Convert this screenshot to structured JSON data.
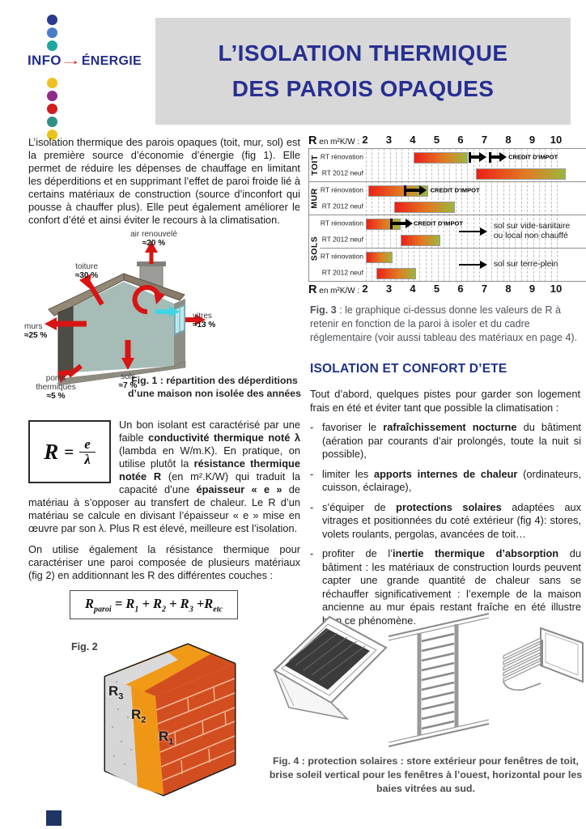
{
  "logo": {
    "word1": "INFO",
    "arrow": "→",
    "word2": "ÉNERGIE",
    "dot_colors_top": [
      "#2a3a8c",
      "#4a7cc7",
      "#20a7a3"
    ],
    "dot_colors_bottom": [
      "#f0c020",
      "#8e2a88",
      "#cf1d1d",
      "#2f8f89",
      "#e7c31c"
    ]
  },
  "title": {
    "line1": "L’ISOLATION THERMIQUE",
    "line2": "DES PAROIS OPAQUES"
  },
  "intro": "L’isolation thermique des parois opaques (toit, mur, sol) est la première source d’économie d’énergie (fig 1). Elle permet de réduire les  dépenses de chauffage en limitant les déperditions et en supprimant l’effet de paroi froide lié à certains matériaux de construction (source d’inconfort qui pousse à chauffer plus). Elle peut également améliorer le confort d’été et ainsi éviter le recours à la climatisation.",
  "fig1": {
    "labels": [
      {
        "name": "air renouvelé",
        "value": "≈20 %"
      },
      {
        "name": "toiture",
        "value": "≈30 %"
      },
      {
        "name": "vitres",
        "value": "≈13 %"
      },
      {
        "name": "murs",
        "value": "≈25 %"
      },
      {
        "name": "sols",
        "value": "≈7 %"
      },
      {
        "name": "ponts\nthermiques",
        "value": "≈5 %"
      }
    ],
    "caption": "Fig. 1 : répartition des déperditions\nd’une maison non isolée des années"
  },
  "isolant": {
    "formula": {
      "lhs": "R",
      "eq": "=",
      "num": "e",
      "den": "λ"
    },
    "p1": [
      {
        "t": "Un bon isolant est caractérisé par une faible "
      },
      {
        "t": "conductivité thermique noté λ",
        "b": true
      },
      {
        "t": " (lambda en W/m.K). En pratique, on utilise plutôt la "
      },
      {
        "t": "résistance thermique notée R",
        "b": true
      },
      {
        "t": " (en m².K/W) qui traduit la capacité d’une "
      },
      {
        "t": "épaisseur « e »",
        "b": true
      },
      {
        "t": " de matériau à s’opposer au transfert de chaleur. Le R d’un matériau se calcule en divisant l’épaisseur « e » mise en œuvre par son λ. Plus R est élevé, meilleure est l’isolation."
      }
    ],
    "p2": "On utilise également la résistance thermique pour caractériser une paroi composée de plusieurs matériaux (fig 2) en additionnant les R des différentes couches :",
    "formula2": [
      {
        "t": "R"
      },
      {
        "t": "paroi",
        "sub": true
      },
      {
        "t": " = R"
      },
      {
        "t": "1",
        "sub": true
      },
      {
        "t": " + R"
      },
      {
        "t": "2",
        "sub": true
      },
      {
        "t": " + R"
      },
      {
        "t": "3",
        "sub": true
      },
      {
        "t": " +R"
      },
      {
        "t": "etc",
        "sub": true
      }
    ]
  },
  "fig2": {
    "label": "Fig. 2",
    "layer_labels": [
      [
        {
          "t": "R"
        },
        {
          "t": "3",
          "sub": true
        }
      ],
      [
        {
          "t": "R"
        },
        {
          "t": "2",
          "sub": true
        }
      ],
      [
        {
          "t": "R"
        },
        {
          "t": "1",
          "sub": true
        }
      ]
    ]
  },
  "chart_data": {
    "type": "bar",
    "axis_label_big": "R",
    "axis_label_rest": " en m²K/W :",
    "axis_ticks": [
      2,
      3,
      4,
      5,
      6,
      7,
      8,
      9,
      10
    ],
    "axis_range": [
      2,
      10
    ],
    "gridline_step": 0.25,
    "bar_gradient": [
      "#ec2018",
      "#e27a22",
      "#9db63e"
    ],
    "sections": [
      {
        "name": "TOIT",
        "rows": [
          {
            "label": "RT rénovation",
            "bar": [
              4.0,
              6.2
            ],
            "arrows": [
              [
                6.3,
                7.05
              ],
              [
                7.15,
                7.9
              ]
            ],
            "note": "CREDIT D'IMPOT",
            "note_at": 7.97
          },
          {
            "label": "RT 2012 neuf",
            "bar": [
              6.6,
              10.3
            ]
          }
        ]
      },
      {
        "name": "MUR",
        "rows": [
          {
            "label": "RT rénovation",
            "bar": [
              2.1,
              4.55
            ],
            "arrows": [
              [
                3.6,
                4.55
              ]
            ],
            "note": "CREDIT D'IMPOT",
            "note_at": 4.7
          },
          {
            "label": "RT 2012 neuf",
            "bar": [
              3.2,
              5.65
            ]
          }
        ]
      },
      {
        "name": "SOLS",
        "rows": [
          {
            "label": "RT rénovation",
            "bar": [
              2.0,
              3.4
            ],
            "arrows": [
              [
                3.0,
                3.95
              ]
            ],
            "note": "CREDIT D'IMPOT",
            "note_at": 4.0
          },
          {
            "label": "RT 2012 neuf",
            "bar": [
              3.45,
              5.05
            ]
          },
          {
            "label": "RT rénovation",
            "bar": [
              2.0,
              3.05
            ],
            "divider_before": true
          },
          {
            "label": "RT 2012 neuf",
            "bar": [
              2.45,
              4.05
            ]
          }
        ],
        "annotations": [
          {
            "arrow": [
              5.9,
              7.1
            ],
            "text_at": 7.35,
            "text": "sol sur vide-sanitaire\nou local non chauffé",
            "row_span": [
              0,
              1
            ]
          },
          {
            "arrow": [
              5.9,
              7.1
            ],
            "text_at": 7.35,
            "text": "sol sur terre-plein",
            "row_span": [
              2,
              3
            ]
          }
        ]
      }
    ]
  },
  "fig3_caption": [
    {
      "t": "Fig. 3",
      "b": true
    },
    {
      "t": " : le graphique ci-dessus  donne les valeurs de R à retenir en fonction de la paroi à isoler et du cadre réglementaire (voir aussi tableau des matériaux en page 4)."
    }
  ],
  "confort": {
    "heading": "ISOLATION ET CONFORT D’ETE",
    "intro": "Tout d’abord, quelques pistes pour garder son logement frais en été et éviter tant que possible la climatisation :",
    "bullet_marker": "-",
    "bullets": [
      [
        {
          "t": "favoriser le "
        },
        {
          "t": "rafraîchissement nocturne",
          "b": true
        },
        {
          "t": " du bâtiment (aération par courants d’air prolongés, toute la nuit si possible),"
        }
      ],
      [
        {
          "t": "limiter les "
        },
        {
          "t": "apports internes de chaleur",
          "b": true
        },
        {
          "t": " (ordinateurs, cuisson, éclairage),"
        }
      ],
      [
        {
          "t": "s’équiper de "
        },
        {
          "t": "protections solaires",
          "b": true
        },
        {
          "t": " adaptées aux vitrages et positionnées du coté extérieur (fig 4): stores, volets roulants, pergolas, avancées de toit…"
        }
      ],
      [
        {
          "t": "profiter de l’"
        },
        {
          "t": "inertie thermique d’absorption",
          "b": true
        },
        {
          "t": " du bâtiment : les matériaux de construction lourds peuvent capter une grande quantité de chaleur sans se réchauffer significativement : l’exemple de la maison ancienne au mur épais restant fraîche en été illustre bien ce phénomène."
        }
      ]
    ]
  },
  "fig4": {
    "caption": "Fig. 4 : protection solaires : store extérieur pour fenêtres de toit, brise soleil vertical pour les fenêtres à l’ouest, horizontal pour les baies vitrées au sud."
  }
}
